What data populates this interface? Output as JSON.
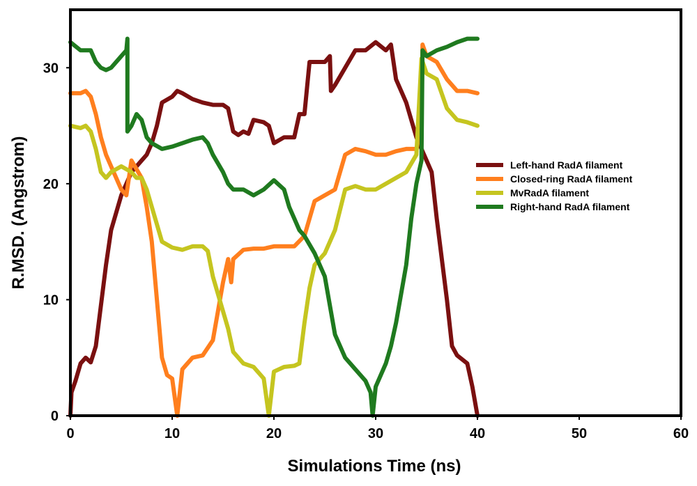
{
  "chart_data": {
    "type": "line",
    "title": "",
    "xlabel": "Simulations Time (ns)",
    "ylabel": "R.MSD. (Angstrom)",
    "xlim": [
      0,
      60
    ],
    "ylim": [
      0,
      35
    ],
    "xticks": [
      0,
      10,
      20,
      30,
      40,
      50,
      60
    ],
    "yticks": [
      0,
      10,
      20,
      30
    ],
    "legend_position": "right",
    "series": [
      {
        "name": "Left-hand RadA filament",
        "color": "#7a1010",
        "points": [
          [
            0,
            0
          ],
          [
            0.1,
            2
          ],
          [
            0.5,
            3
          ],
          [
            1,
            4.5
          ],
          [
            1.5,
            5
          ],
          [
            2,
            4.6
          ],
          [
            2.5,
            6
          ],
          [
            3,
            9.5
          ],
          [
            3.5,
            13
          ],
          [
            4,
            16
          ],
          [
            4.5,
            17.5
          ],
          [
            5,
            19
          ],
          [
            5.5,
            20
          ],
          [
            6,
            21
          ],
          [
            6.5,
            21.5
          ],
          [
            7,
            22
          ],
          [
            7.5,
            22.5
          ],
          [
            8,
            23.5
          ],
          [
            8.5,
            25
          ],
          [
            9,
            27
          ],
          [
            10,
            27.5
          ],
          [
            10.5,
            28
          ],
          [
            11,
            27.8
          ],
          [
            12,
            27.3
          ],
          [
            13,
            27
          ],
          [
            14,
            26.8
          ],
          [
            15,
            26.8
          ],
          [
            15.5,
            26.5
          ],
          [
            16,
            24.5
          ],
          [
            16.5,
            24.2
          ],
          [
            17,
            24.5
          ],
          [
            17.5,
            24.3
          ],
          [
            18,
            25.5
          ],
          [
            19,
            25.3
          ],
          [
            19.5,
            25
          ],
          [
            20,
            23.5
          ],
          [
            21,
            24
          ],
          [
            22,
            24
          ],
          [
            22.5,
            26
          ],
          [
            23,
            26
          ],
          [
            23.5,
            30.5
          ],
          [
            24,
            30.5
          ],
          [
            25,
            30.5
          ],
          [
            25.5,
            31
          ],
          [
            25.6,
            28
          ],
          [
            26,
            28.5
          ],
          [
            27,
            30
          ],
          [
            28,
            31.5
          ],
          [
            29,
            31.5
          ],
          [
            30,
            32.2
          ],
          [
            31,
            31.5
          ],
          [
            31.5,
            32
          ],
          [
            32,
            29
          ],
          [
            33,
            27
          ],
          [
            34,
            24
          ],
          [
            35,
            22
          ],
          [
            35.5,
            21
          ],
          [
            36,
            17
          ],
          [
            37,
            10
          ],
          [
            37.5,
            6
          ],
          [
            38,
            5.2
          ],
          [
            39,
            4.5
          ],
          [
            39.5,
            2.5
          ],
          [
            40,
            0
          ]
        ]
      },
      {
        "name": "Closed-ring RadA filament",
        "color": "#ff7f1e",
        "points": [
          [
            0,
            27.8
          ],
          [
            1,
            27.8
          ],
          [
            1.5,
            28
          ],
          [
            2,
            27.5
          ],
          [
            2.5,
            26
          ],
          [
            3,
            24
          ],
          [
            3.5,
            22.5
          ],
          [
            4,
            21.5
          ],
          [
            4.5,
            20.5
          ],
          [
            5,
            19.5
          ],
          [
            5.5,
            19
          ],
          [
            6,
            22
          ],
          [
            7,
            20.5
          ],
          [
            7.5,
            18
          ],
          [
            8,
            15
          ],
          [
            8.5,
            10
          ],
          [
            9,
            5
          ],
          [
            9.5,
            3.5
          ],
          [
            10,
            3.2
          ],
          [
            10.5,
            0
          ],
          [
            11,
            4
          ],
          [
            11.5,
            4.5
          ],
          [
            12,
            5
          ],
          [
            13,
            5.2
          ],
          [
            14,
            6.5
          ],
          [
            14.5,
            9
          ],
          [
            15,
            11.5
          ],
          [
            15.5,
            13.5
          ],
          [
            15.8,
            11.5
          ],
          [
            16,
            13.5
          ],
          [
            17,
            14.3
          ],
          [
            18,
            14.4
          ],
          [
            19,
            14.4
          ],
          [
            20,
            14.6
          ],
          [
            21,
            14.6
          ],
          [
            22,
            14.6
          ],
          [
            23,
            15.5
          ],
          [
            24,
            18.5
          ],
          [
            25,
            19
          ],
          [
            26,
            19.5
          ],
          [
            27,
            22.5
          ],
          [
            28,
            23
          ],
          [
            29,
            22.8
          ],
          [
            30,
            22.5
          ],
          [
            31,
            22.5
          ],
          [
            32,
            22.8
          ],
          [
            33,
            23
          ],
          [
            34,
            23
          ],
          [
            34.5,
            25
          ],
          [
            34.6,
            32
          ],
          [
            35,
            31
          ],
          [
            36,
            30.5
          ],
          [
            37,
            29
          ],
          [
            38,
            28
          ],
          [
            39,
            28
          ],
          [
            40,
            27.8
          ]
        ]
      },
      {
        "name": "MvRadA filament",
        "color": "#c5c520",
        "points": [
          [
            0,
            25
          ],
          [
            1,
            24.8
          ],
          [
            1.5,
            25
          ],
          [
            2,
            24.5
          ],
          [
            2.5,
            23
          ],
          [
            3,
            21
          ],
          [
            3.5,
            20.5
          ],
          [
            4,
            21
          ],
          [
            5,
            21.5
          ],
          [
            6,
            21
          ],
          [
            6.5,
            20.5
          ],
          [
            7,
            20.5
          ],
          [
            7.5,
            19.5
          ],
          [
            8,
            18
          ],
          [
            9,
            15
          ],
          [
            10,
            14.5
          ],
          [
            11,
            14.3
          ],
          [
            12,
            14.6
          ],
          [
            13,
            14.6
          ],
          [
            13.5,
            14.2
          ],
          [
            14,
            12
          ],
          [
            15,
            9
          ],
          [
            15.5,
            7.5
          ],
          [
            16,
            5.5
          ],
          [
            17,
            4.5
          ],
          [
            18,
            4.2
          ],
          [
            19,
            3.2
          ],
          [
            19.5,
            0
          ],
          [
            20,
            3.8
          ],
          [
            21,
            4.2
          ],
          [
            22,
            4.3
          ],
          [
            22.5,
            4.5
          ],
          [
            23,
            8
          ],
          [
            23.5,
            11
          ],
          [
            24,
            13
          ],
          [
            25,
            14
          ],
          [
            26,
            16
          ],
          [
            27,
            19.5
          ],
          [
            28,
            19.8
          ],
          [
            29,
            19.5
          ],
          [
            30,
            19.5
          ],
          [
            31,
            20
          ],
          [
            32,
            20.5
          ],
          [
            33,
            21
          ],
          [
            34,
            22.5
          ],
          [
            34.5,
            30.8
          ],
          [
            35,
            29.5
          ],
          [
            36,
            29
          ],
          [
            37,
            26.5
          ],
          [
            38,
            25.5
          ],
          [
            39,
            25.3
          ],
          [
            40,
            25
          ]
        ]
      },
      {
        "name": "Right-hand RadA filament",
        "color": "#1f7a1f",
        "points": [
          [
            0,
            32.2
          ],
          [
            1,
            31.5
          ],
          [
            2,
            31.5
          ],
          [
            2.5,
            30.5
          ],
          [
            3,
            30
          ],
          [
            3.5,
            29.8
          ],
          [
            4,
            30
          ],
          [
            4.5,
            30.5
          ],
          [
            5,
            31
          ],
          [
            5.5,
            31.5
          ],
          [
            5.6,
            32.5
          ],
          [
            5.6,
            24.5
          ],
          [
            6,
            25
          ],
          [
            6.5,
            26
          ],
          [
            7,
            25.5
          ],
          [
            7.5,
            24
          ],
          [
            8,
            23.5
          ],
          [
            9,
            23
          ],
          [
            10,
            23.2
          ],
          [
            11,
            23.5
          ],
          [
            12,
            23.8
          ],
          [
            13,
            24
          ],
          [
            13.5,
            23.5
          ],
          [
            14,
            22.5
          ],
          [
            15,
            21
          ],
          [
            15.5,
            20
          ],
          [
            16,
            19.5
          ],
          [
            17,
            19.5
          ],
          [
            18,
            19
          ],
          [
            19,
            19.5
          ],
          [
            20,
            20.3
          ],
          [
            21,
            19.5
          ],
          [
            21.5,
            18
          ],
          [
            22,
            17
          ],
          [
            22.5,
            16
          ],
          [
            23,
            15.5
          ],
          [
            24,
            14
          ],
          [
            24.5,
            13
          ],
          [
            25,
            12
          ],
          [
            25.5,
            9.5
          ],
          [
            26,
            7
          ],
          [
            27,
            5
          ],
          [
            28,
            4
          ],
          [
            29,
            3
          ],
          [
            29.5,
            2
          ],
          [
            29.7,
            0
          ],
          [
            30,
            2.5
          ],
          [
            31,
            4.5
          ],
          [
            31.5,
            6
          ],
          [
            32,
            8
          ],
          [
            33,
            13
          ],
          [
            33.5,
            17
          ],
          [
            34,
            20
          ],
          [
            34.5,
            22
          ],
          [
            34.6,
            31.5
          ],
          [
            35,
            31
          ],
          [
            36,
            31.5
          ],
          [
            37,
            31.8
          ],
          [
            38,
            32.2
          ],
          [
            39,
            32.5
          ],
          [
            40,
            32.5
          ]
        ]
      }
    ]
  }
}
